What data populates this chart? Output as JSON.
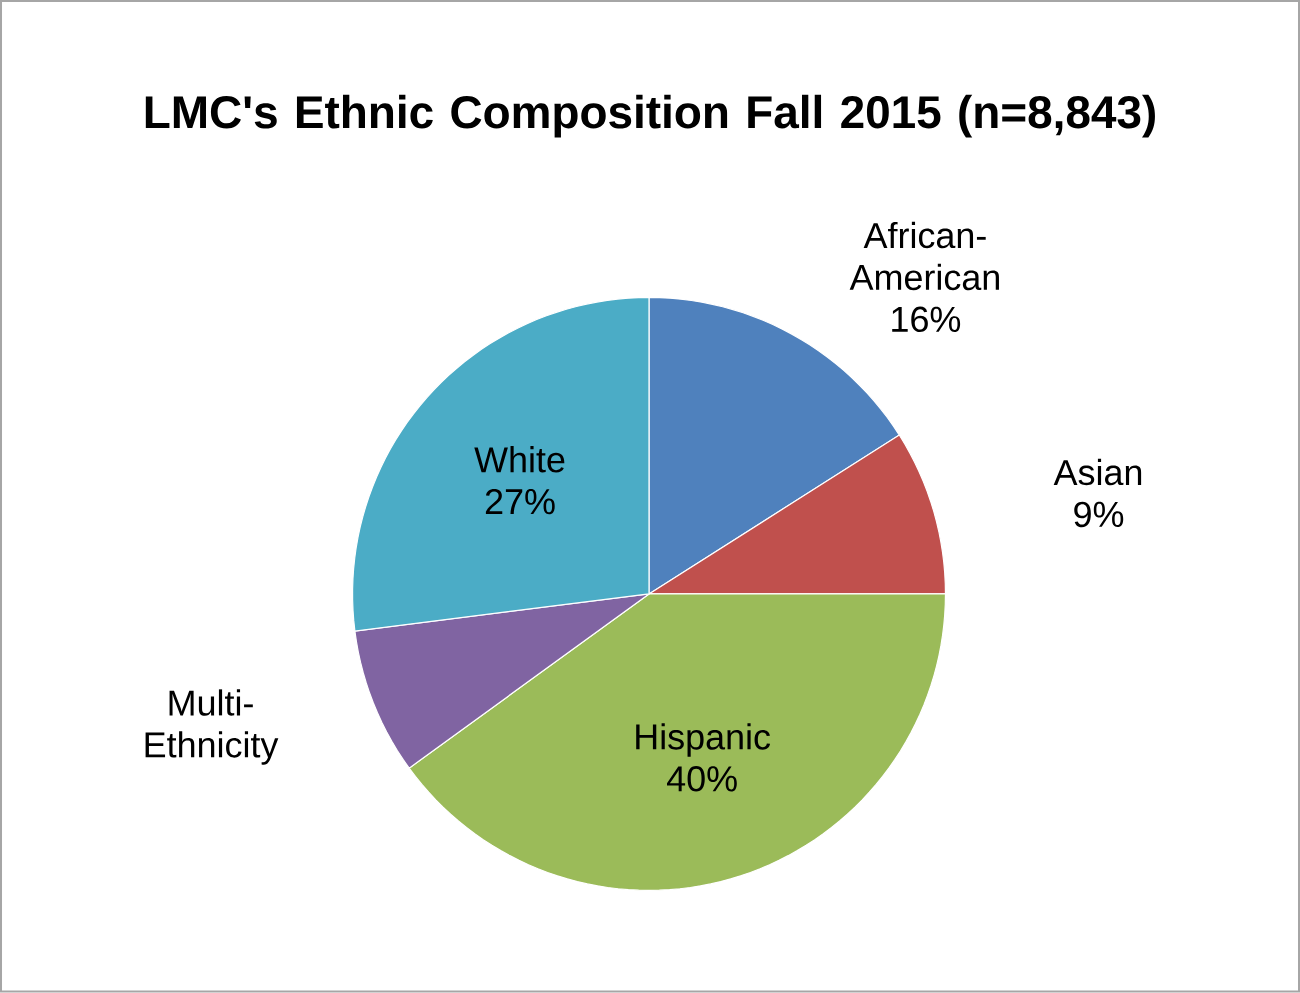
{
  "chart_data": {
    "type": "pie",
    "title": "LMC's Ethnic Composition Fall 2015 (n=8,843)",
    "categories": [
      "African-American",
      "Asian",
      "Hispanic",
      "Multi-Ethnicity",
      "White"
    ],
    "values": [
      16,
      9,
      40,
      8,
      27
    ],
    "value_labels": [
      "16%",
      "9%",
      "40%",
      null,
      "27%"
    ],
    "colors": [
      "#4f81bd",
      "#c0504d",
      "#9bbb59",
      "#8064a2",
      "#4bacc6"
    ]
  }
}
